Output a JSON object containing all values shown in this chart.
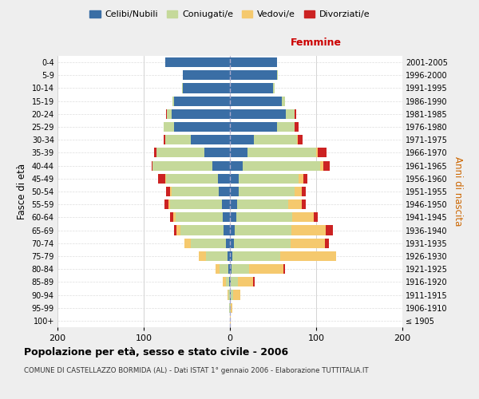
{
  "age_groups": [
    "100+",
    "95-99",
    "90-94",
    "85-89",
    "80-84",
    "75-79",
    "70-74",
    "65-69",
    "60-64",
    "55-59",
    "50-54",
    "45-49",
    "40-44",
    "35-39",
    "30-34",
    "25-29",
    "20-24",
    "15-19",
    "10-14",
    "5-9",
    "0-4"
  ],
  "birth_years": [
    "≤ 1905",
    "1906-1910",
    "1911-1915",
    "1916-1920",
    "1921-1925",
    "1926-1930",
    "1931-1935",
    "1936-1940",
    "1941-1945",
    "1946-1950",
    "1951-1955",
    "1956-1960",
    "1961-1965",
    "1966-1970",
    "1971-1975",
    "1976-1980",
    "1981-1985",
    "1986-1990",
    "1991-1995",
    "1996-2000",
    "2001-2005"
  ],
  "colors": {
    "celibi": "#3a6ea5",
    "coniugati": "#c5d99a",
    "vedovi": "#f5c96e",
    "divorziati": "#cc2222"
  },
  "males": {
    "celibi": [
      0,
      0,
      0,
      1,
      2,
      3,
      5,
      7,
      8,
      9,
      13,
      14,
      20,
      30,
      45,
      65,
      68,
      65,
      55,
      55,
      75
    ],
    "coniugati": [
      0,
      1,
      2,
      4,
      10,
      25,
      40,
      50,
      55,
      60,
      55,
      60,
      70,
      55,
      30,
      12,
      5,
      2,
      1,
      0,
      0
    ],
    "vedovi": [
      0,
      0,
      1,
      3,
      5,
      8,
      8,
      5,
      3,
      2,
      1,
      1,
      0,
      0,
      0,
      0,
      0,
      0,
      0,
      0,
      0
    ],
    "divorziati": [
      0,
      0,
      0,
      0,
      0,
      0,
      0,
      3,
      3,
      5,
      5,
      8,
      1,
      3,
      2,
      0,
      1,
      0,
      0,
      0,
      0
    ]
  },
  "females": {
    "celibi": [
      0,
      0,
      1,
      1,
      2,
      3,
      5,
      6,
      7,
      8,
      10,
      10,
      15,
      20,
      28,
      55,
      65,
      60,
      50,
      55,
      55
    ],
    "coniugati": [
      0,
      1,
      3,
      8,
      20,
      55,
      65,
      65,
      65,
      60,
      65,
      70,
      90,
      80,
      50,
      20,
      10,
      4,
      2,
      1,
      0
    ],
    "vedovi": [
      1,
      2,
      8,
      18,
      40,
      65,
      40,
      40,
      25,
      15,
      8,
      5,
      3,
      2,
      1,
      0,
      0,
      0,
      0,
      0,
      0
    ],
    "divorziati": [
      0,
      0,
      0,
      2,
      2,
      0,
      5,
      8,
      5,
      5,
      5,
      5,
      8,
      10,
      5,
      5,
      2,
      0,
      0,
      0,
      0
    ]
  },
  "title": "Popolazione per età, sesso e stato civile - 2006",
  "subtitle": "COMUNE DI CASTELLAZZO BORMIDA (AL) - Dati ISTAT 1° gennaio 2006 - Elaborazione TUTTITALIA.IT",
  "ylabel_left": "Fasce di età",
  "ylabel_right": "Anni di nascita",
  "xlabel_right": "Femmine",
  "xlim": 200,
  "legend_labels": [
    "Celibi/Nubili",
    "Coniugati/e",
    "Vedovi/e",
    "Divorziati/e"
  ],
  "background_color": "#eeeeee",
  "plot_bg": "#ffffff"
}
